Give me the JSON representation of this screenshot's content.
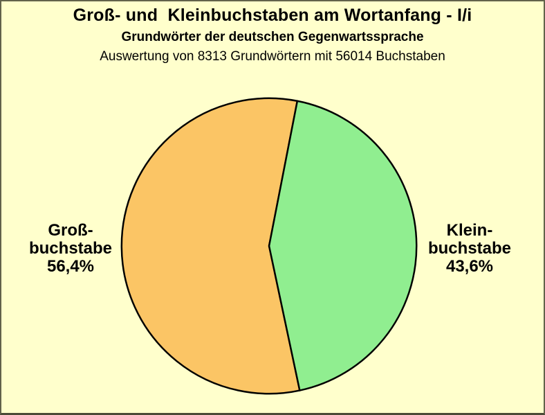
{
  "header": {
    "title": "Groß- und  Kleinbuchstaben am Wortanfang - I/i",
    "subtitle": "Grundwörter der deutschen Gegenwartssprache",
    "caption": "Auswertung von 8313 Grundwörtern mit 56014 Buchstaben"
  },
  "labels": {
    "left": "Groß-\nbuchstabe\n56,4%",
    "right": "Klein-\nbuchstabe\n43,6%"
  },
  "chart_data": {
    "type": "pie",
    "title": "Groß- und  Kleinbuchstaben am Wortanfang - I/i",
    "subtitle": "Grundwörter der deutschen Gegenwartssprache",
    "caption": "Auswertung von 8313 Grundwörtern mit 56014 Buchstaben",
    "unit": "%",
    "start_angle_deg": 168,
    "stroke_color": "#000000",
    "stroke_width": 2.5,
    "label_position": "outside-sides",
    "legend": "none",
    "slices": [
      {
        "id": "grossbuchstabe",
        "label": "Groß-buchstabe",
        "value_pct": 56.4,
        "value_label": "56,4%",
        "color": "#FBC565"
      },
      {
        "id": "kleinbuchstabe",
        "label": "Klein-buchstabe",
        "value_pct": 43.6,
        "value_label": "43,6%",
        "color": "#90EE90"
      }
    ]
  },
  "colors": {
    "background": "#FFFFCC",
    "border": "#55553F",
    "text": "#000000"
  }
}
